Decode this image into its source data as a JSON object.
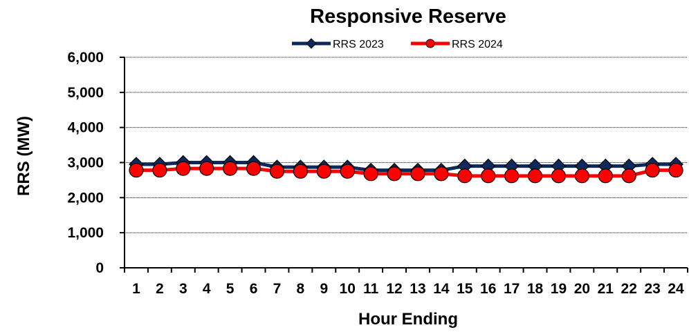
{
  "chart_data": {
    "type": "line",
    "title": "Responsive Reserve",
    "xlabel": "Hour Ending",
    "ylabel": "RRS (MW)",
    "ylim": [
      0,
      6000
    ],
    "yticks": [
      "0",
      "1,000",
      "2,000",
      "3,000",
      "4,000",
      "5,000",
      "6,000"
    ],
    "categories": [
      "1",
      "2",
      "3",
      "4",
      "5",
      "6",
      "7",
      "8",
      "9",
      "10",
      "11",
      "12",
      "13",
      "14",
      "15",
      "16",
      "17",
      "18",
      "19",
      "20",
      "21",
      "22",
      "23",
      "24"
    ],
    "grid": true,
    "legend_position": "top",
    "series": [
      {
        "name": "RRS 2023",
        "color": "#0b2a5b",
        "marker": "diamond",
        "values": [
          2950,
          2950,
          3000,
          3000,
          3000,
          3000,
          2870,
          2870,
          2870,
          2870,
          2780,
          2780,
          2780,
          2780,
          2900,
          2900,
          2900,
          2900,
          2900,
          2900,
          2900,
          2900,
          2950,
          2950
        ]
      },
      {
        "name": "RRS 2024",
        "color": "#ff0000",
        "marker": "circle",
        "values": [
          2780,
          2780,
          2830,
          2830,
          2830,
          2830,
          2750,
          2750,
          2750,
          2750,
          2680,
          2680,
          2680,
          2680,
          2620,
          2620,
          2620,
          2620,
          2620,
          2620,
          2620,
          2620,
          2780,
          2780
        ]
      }
    ]
  }
}
